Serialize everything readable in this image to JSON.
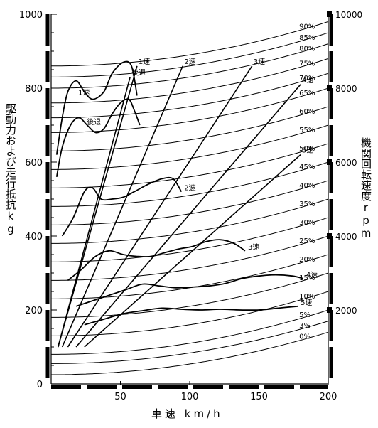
{
  "chart_data": {
    "type": "line",
    "xlabel": "車速 km/h",
    "ylabel_left": "駆動力および走行抵抗kg",
    "ylabel_right": "機関回転速度rpm",
    "xlim": [
      0,
      200
    ],
    "ylim_left": [
      0,
      1000
    ],
    "ylim_right": [
      0,
      10000
    ],
    "x_ticks": [
      "50",
      "100",
      "150",
      "200"
    ],
    "y_ticks_left": [
      "0",
      "200",
      "400",
      "600",
      "800",
      "1000"
    ],
    "y_ticks_right": [
      "2000",
      "4000",
      "6000",
      "8000",
      "10000"
    ],
    "grid": false,
    "resistance_curves": [
      {
        "name": "0%",
        "y0": 25,
        "y200": 140
      },
      {
        "name": "3%",
        "y0": 55,
        "y200": 170
      },
      {
        "name": "5%",
        "y0": 80,
        "y200": 200
      },
      {
        "name": "10%",
        "y0": 130,
        "y200": 250
      },
      {
        "name": "15%",
        "y0": 180,
        "y200": 300
      },
      {
        "name": "20%",
        "y0": 230,
        "y200": 350
      },
      {
        "name": "25%",
        "y0": 280,
        "y200": 400
      },
      {
        "name": "30%",
        "y0": 330,
        "y200": 450
      },
      {
        "name": "35%",
        "y0": 380,
        "y200": 500
      },
      {
        "name": "40%",
        "y0": 430,
        "y200": 550
      },
      {
        "name": "45%",
        "y0": 480,
        "y200": 600
      },
      {
        "name": "50%",
        "y0": 530,
        "y200": 650
      },
      {
        "name": "55%",
        "y0": 580,
        "y200": 700
      },
      {
        "name": "60%",
        "y0": 630,
        "y200": 750
      },
      {
        "name": "65%",
        "y0": 680,
        "y200": 800
      },
      {
        "name": "70%",
        "y0": 720,
        "y200": 840
      },
      {
        "name": "75%",
        "y0": 760,
        "y200": 880
      },
      {
        "name": "80%",
        "y0": 800,
        "y200": 920
      },
      {
        "name": "85%",
        "y0": 830,
        "y200": 950
      },
      {
        "name": "90%",
        "y0": 860,
        "y200": 980
      }
    ],
    "rpm_lines": [
      {
        "name": "1速",
        "points": [
          [
            5,
            1000
          ],
          [
            62,
            8600
          ]
        ]
      },
      {
        "name": "2速",
        "points": [
          [
            8,
            1000
          ],
          [
            95,
            8600
          ]
        ]
      },
      {
        "name": "3速",
        "points": [
          [
            12,
            1000
          ],
          [
            145,
            8600
          ]
        ]
      },
      {
        "name": "4速",
        "points": [
          [
            18,
            1000
          ],
          [
            180,
            8100
          ]
        ]
      },
      {
        "name": "5速",
        "points": [
          [
            24,
            1000
          ],
          [
            180,
            6200
          ]
        ]
      },
      {
        "name": "後退",
        "points": [
          [
            5,
            1000
          ],
          [
            57,
            8300
          ]
        ]
      }
    ],
    "drive_force_curves": [
      {
        "name": "1速",
        "points": [
          [
            4,
            620
          ],
          [
            8,
            720
          ],
          [
            12,
            790
          ],
          [
            18,
            820
          ],
          [
            24,
            790
          ],
          [
            30,
            770
          ],
          [
            38,
            790
          ],
          [
            44,
            840
          ],
          [
            52,
            870
          ],
          [
            58,
            860
          ],
          [
            62,
            780
          ]
        ]
      },
      {
        "name": "後退",
        "points": [
          [
            4,
            560
          ],
          [
            8,
            640
          ],
          [
            14,
            700
          ],
          [
            20,
            720
          ],
          [
            26,
            700
          ],
          [
            32,
            680
          ],
          [
            38,
            690
          ],
          [
            44,
            730
          ],
          [
            50,
            760
          ],
          [
            56,
            770
          ],
          [
            60,
            740
          ],
          [
            64,
            700
          ]
        ]
      },
      {
        "name": "2速",
        "points": [
          [
            8,
            400
          ],
          [
            16,
            450
          ],
          [
            24,
            520
          ],
          [
            30,
            530
          ],
          [
            36,
            500
          ],
          [
            44,
            500
          ],
          [
            52,
            505
          ],
          [
            60,
            520
          ],
          [
            70,
            540
          ],
          [
            80,
            555
          ],
          [
            88,
            555
          ],
          [
            94,
            520
          ]
        ]
      },
      {
        "name": "3速",
        "points": [
          [
            12,
            280
          ],
          [
            22,
            310
          ],
          [
            32,
            345
          ],
          [
            42,
            360
          ],
          [
            52,
            350
          ],
          [
            62,
            345
          ],
          [
            72,
            345
          ],
          [
            82,
            355
          ],
          [
            92,
            365
          ],
          [
            102,
            372
          ],
          [
            112,
            385
          ],
          [
            122,
            390
          ],
          [
            132,
            380
          ],
          [
            140,
            360
          ]
        ]
      },
      {
        "name": "4速",
        "points": [
          [
            18,
            210
          ],
          [
            30,
            225
          ],
          [
            42,
            240
          ],
          [
            54,
            255
          ],
          [
            66,
            270
          ],
          [
            78,
            265
          ],
          [
            90,
            260
          ],
          [
            102,
            262
          ],
          [
            114,
            265
          ],
          [
            126,
            272
          ],
          [
            138,
            285
          ],
          [
            150,
            292
          ],
          [
            162,
            295
          ],
          [
            174,
            292
          ],
          [
            182,
            285
          ]
        ]
      },
      {
        "name": "5速",
        "points": [
          [
            24,
            160
          ],
          [
            38,
            175
          ],
          [
            52,
            190
          ],
          [
            66,
            198
          ],
          [
            80,
            205
          ],
          [
            94,
            202
          ],
          [
            108,
            200
          ],
          [
            122,
            202
          ],
          [
            136,
            200
          ],
          [
            150,
            200
          ],
          [
            164,
            205
          ],
          [
            178,
            210
          ]
        ]
      }
    ]
  }
}
